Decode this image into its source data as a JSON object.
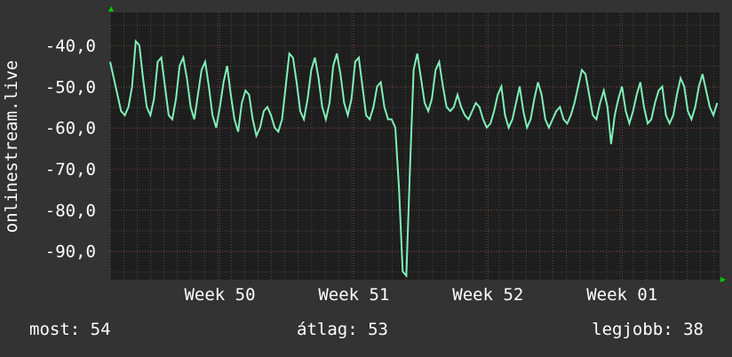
{
  "colors": {
    "background": "#333333",
    "plot_background": "#1e1e1e",
    "grid_minor": "#4a4a4a",
    "grid_major": "#7a3a3a",
    "line": "#80f0b8",
    "arrow": "#00cc00",
    "text": "#ffffff"
  },
  "stats": {
    "now": "most: 54",
    "avg": "átlag: 53",
    "best": "legjobb: 38"
  },
  "chart_data": {
    "type": "line",
    "title": "",
    "xlabel": "",
    "ylabel": "onlinestream.live",
    "ylim": [
      -97,
      -32
    ],
    "xlim": [
      0,
      100
    ],
    "grid": true,
    "y_ticks": [
      {
        "value": -40,
        "label": "-40,0"
      },
      {
        "value": -50,
        "label": "-50,0"
      },
      {
        "value": -60,
        "label": "-60,0"
      },
      {
        "value": -70,
        "label": "-70,0"
      },
      {
        "value": -80,
        "label": "-80,0"
      },
      {
        "value": -90,
        "label": "-90,0"
      }
    ],
    "x_ticks": [
      {
        "value": 18,
        "label": "Week 50"
      },
      {
        "value": 40,
        "label": "Week 51"
      },
      {
        "value": 62,
        "label": "Week 52"
      },
      {
        "value": 84,
        "label": "Week 01"
      }
    ],
    "series": [
      {
        "name": "",
        "x": [
          0,
          0.6,
          1.2,
          1.8,
          2.4,
          3.0,
          3.6,
          4.2,
          4.8,
          5.4,
          6.0,
          6.6,
          7.2,
          7.8,
          8.4,
          9.0,
          9.6,
          10.2,
          10.8,
          11.4,
          12.0,
          12.6,
          13.2,
          13.8,
          14.4,
          15.0,
          15.6,
          16.2,
          16.8,
          17.4,
          18.0,
          18.6,
          19.2,
          19.8,
          20.4,
          21.0,
          21.6,
          22.2,
          22.8,
          23.4,
          24.0,
          24.6,
          25.2,
          25.8,
          26.4,
          27.0,
          27.6,
          28.2,
          28.8,
          29.4,
          30.0,
          30.6,
          31.2,
          31.8,
          32.4,
          33.0,
          33.6,
          34.2,
          34.8,
          35.4,
          36.0,
          36.6,
          37.2,
          37.8,
          38.4,
          39.0,
          39.6,
          40.2,
          40.8,
          41.4,
          42.0,
          42.6,
          43.2,
          43.8,
          44.4,
          45.0,
          45.6,
          46.2,
          46.8,
          47.4,
          48.0,
          48.6,
          49.2,
          49.8,
          50.4,
          51.0,
          51.6,
          52.2,
          52.8,
          53.4,
          54.0,
          54.6,
          55.2,
          55.8,
          56.4,
          57.0,
          57.6,
          58.2,
          58.8,
          59.4,
          60.0,
          60.6,
          61.2,
          61.8,
          62.4,
          63.0,
          63.6,
          64.2,
          64.8,
          65.4,
          66.0,
          66.6,
          67.2,
          67.8,
          68.4,
          69.0,
          69.6,
          70.2,
          70.8,
          71.4,
          72.0,
          72.6,
          73.2,
          73.8,
          74.4,
          75.0,
          75.6,
          76.2,
          76.8,
          77.4,
          78.0,
          78.6,
          79.2,
          79.8,
          80.4,
          81.0,
          81.6,
          82.2,
          82.8,
          83.4,
          84.0,
          84.6,
          85.2,
          85.8,
          86.4,
          87.0,
          87.6,
          88.2,
          88.8,
          89.4,
          90.0,
          90.6,
          91.2,
          91.8,
          92.4,
          93.0,
          93.6,
          94.2,
          94.8,
          95.4,
          96.0,
          96.6,
          97.2,
          97.8,
          98.4,
          99.0,
          99.6
        ],
        "values": [
          -44,
          -48,
          -52,
          -56,
          -57,
          -55,
          -50,
          -39,
          -40,
          -48,
          -55,
          -57,
          -53,
          -44,
          -43,
          -50,
          -57,
          -58,
          -53,
          -45,
          -43,
          -48,
          -55,
          -58,
          -52,
          -46,
          -44,
          -50,
          -57,
          -60,
          -55,
          -49,
          -45,
          -52,
          -58,
          -61,
          -54,
          -51,
          -52,
          -58,
          -62,
          -60,
          -56,
          -55,
          -57,
          -60,
          -61,
          -58,
          -50,
          -42,
          -43,
          -49,
          -56,
          -58,
          -53,
          -46,
          -43,
          -48,
          -55,
          -58,
          -54,
          -45,
          -42,
          -47,
          -54,
          -57,
          -53,
          -44,
          -43,
          -50,
          -57,
          -58,
          -55,
          -50,
          -49,
          -55,
          -58,
          -58,
          -60,
          -75,
          -95,
          -96,
          -70,
          -46,
          -42,
          -48,
          -54,
          -56,
          -53,
          -46,
          -44,
          -50,
          -55,
          -56,
          -55,
          -52,
          -55,
          -57,
          -58,
          -56,
          -54,
          -55,
          -58,
          -60,
          -59,
          -56,
          -52,
          -50,
          -57,
          -60,
          -58,
          -54,
          -50,
          -56,
          -60,
          -58,
          -53,
          -49,
          -52,
          -58,
          -60,
          -58,
          -56,
          -55,
          -58,
          -59,
          -57,
          -54,
          -50,
          -46,
          -47,
          -52,
          -57,
          -58,
          -54,
          -51,
          -55,
          -64,
          -57,
          -53,
          -50,
          -56,
          -59,
          -56,
          -52,
          -49,
          -55,
          -59,
          -58,
          -54,
          -51,
          -50,
          -57,
          -59,
          -57,
          -52,
          -48,
          -50,
          -56,
          -58,
          -55,
          -50,
          -47,
          -51,
          -55,
          -57,
          -54
        ]
      }
    ]
  }
}
